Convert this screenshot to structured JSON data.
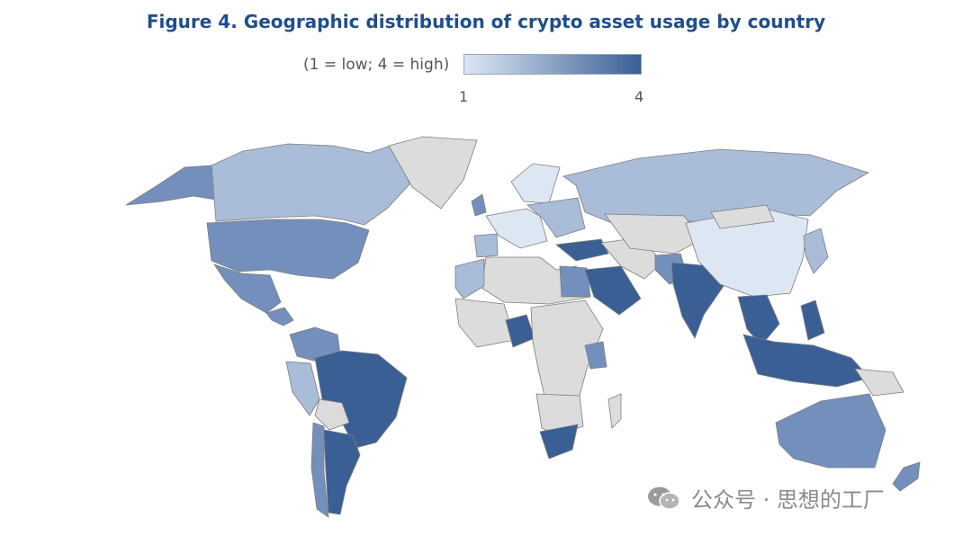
{
  "title": "Figure 4. Geographic distribution of crypto asset usage by country",
  "legend": {
    "caption": "(1 = low; 4 = high)",
    "min": "1",
    "max": "4",
    "color_low": "#dde7f4",
    "color_high": "#3a5f95",
    "no_data_color": "#dcdcdc"
  },
  "watermark": {
    "text": "公众号 · 思想的工厂",
    "icon": "wechat-icon"
  },
  "map": {
    "levels": {
      "1": "#dde7f4",
      "2": "#a9bcd8",
      "3": "#7390bd",
      "4": "#3a5f95",
      "none": "#dcdcdc"
    },
    "regions": [
      {
        "name": "canada",
        "level": "2"
      },
      {
        "name": "alaska",
        "level": "3"
      },
      {
        "name": "greenland",
        "level": "none"
      },
      {
        "name": "united-states",
        "level": "3"
      },
      {
        "name": "mexico",
        "level": "3"
      },
      {
        "name": "central-america",
        "level": "3"
      },
      {
        "name": "colombia-venezuela",
        "level": "3"
      },
      {
        "name": "peru",
        "level": "2"
      },
      {
        "name": "brazil",
        "level": "4"
      },
      {
        "name": "bolivia",
        "level": "none"
      },
      {
        "name": "chile",
        "level": "3"
      },
      {
        "name": "argentina",
        "level": "4"
      },
      {
        "name": "uk",
        "level": "3"
      },
      {
        "name": "iberia",
        "level": "2"
      },
      {
        "name": "western-europe",
        "level": "1"
      },
      {
        "name": "scandinavia",
        "level": "1"
      },
      {
        "name": "eastern-europe",
        "level": "2"
      },
      {
        "name": "russia",
        "level": "2"
      },
      {
        "name": "turkey",
        "level": "4"
      },
      {
        "name": "north-africa",
        "level": "none"
      },
      {
        "name": "morocco",
        "level": "2"
      },
      {
        "name": "egypt",
        "level": "3"
      },
      {
        "name": "west-africa",
        "level": "none"
      },
      {
        "name": "nigeria",
        "level": "4"
      },
      {
        "name": "central-africa",
        "level": "none"
      },
      {
        "name": "kenya",
        "level": "3"
      },
      {
        "name": "southern-africa",
        "level": "none"
      },
      {
        "name": "south-africa",
        "level": "4"
      },
      {
        "name": "madagascar",
        "level": "none"
      },
      {
        "name": "saudi-arabia",
        "level": "4"
      },
      {
        "name": "middle-east",
        "level": "none"
      },
      {
        "name": "central-asia",
        "level": "none"
      },
      {
        "name": "pakistan",
        "level": "3"
      },
      {
        "name": "india",
        "level": "4"
      },
      {
        "name": "china",
        "level": "1"
      },
      {
        "name": "mongolia",
        "level": "none"
      },
      {
        "name": "korea-japan",
        "level": "2"
      },
      {
        "name": "southeast-asia",
        "level": "4"
      },
      {
        "name": "philippines",
        "level": "4"
      },
      {
        "name": "indonesia",
        "level": "4"
      },
      {
        "name": "papua",
        "level": "none"
      },
      {
        "name": "australia",
        "level": "3"
      },
      {
        "name": "new-zealand",
        "level": "3"
      }
    ]
  }
}
